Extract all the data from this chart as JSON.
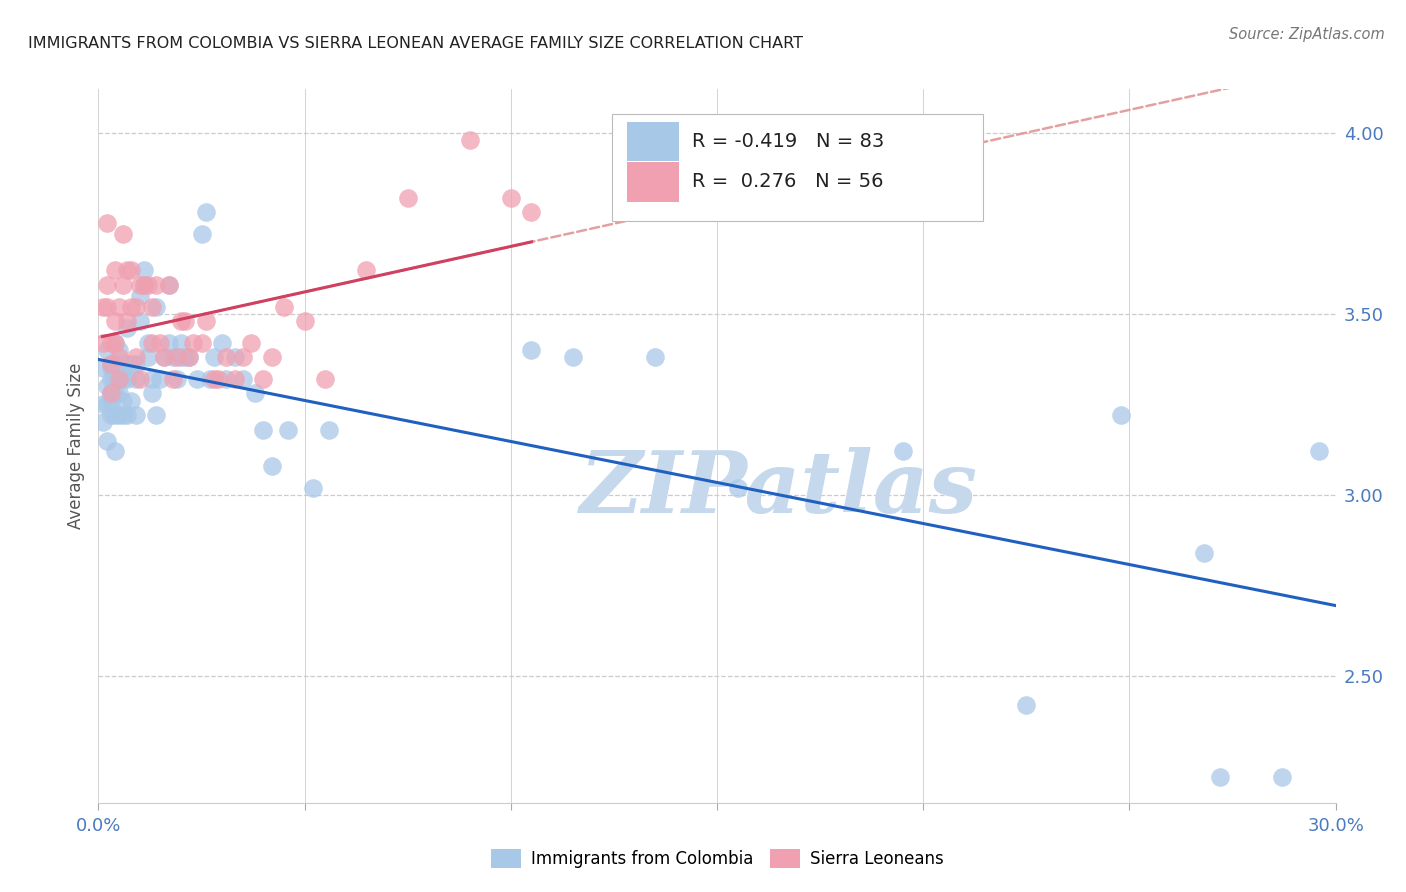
{
  "title": "IMMIGRANTS FROM COLOMBIA VS SIERRA LEONEAN AVERAGE FAMILY SIZE CORRELATION CHART",
  "source": "Source: ZipAtlas.com",
  "ylabel": "Average Family Size",
  "xlim": [
    0.0,
    0.3
  ],
  "ylim": [
    2.15,
    4.12
  ],
  "right_ytick_vals": [
    2.5,
    3.0,
    3.5,
    4.0
  ],
  "right_ytick_labels": [
    "2.50",
    "3.00",
    "3.50",
    "4.00"
  ],
  "xtick_positions": [
    0.0,
    0.05,
    0.1,
    0.15,
    0.2,
    0.25,
    0.3
  ],
  "xtick_labels_edge": [
    "0.0%",
    "",
    "",
    "",
    "",
    "",
    "30.0%"
  ],
  "colombia_R": -0.419,
  "colombia_N": 83,
  "sierraleone_R": 0.276,
  "sierraleone_N": 56,
  "colombia_color": "#a8c8e8",
  "sierraleone_color": "#f0a0b0",
  "colombia_line_color": "#2060c0",
  "sierraleone_line_color": "#d04060",
  "sierraleone_dashed_color": "#e09090",
  "watermark": "ZIPatlas",
  "watermark_color": "#c5d8ec",
  "colombia_x": [
    0.001,
    0.001,
    0.001,
    0.002,
    0.002,
    0.002,
    0.002,
    0.003,
    0.003,
    0.003,
    0.003,
    0.003,
    0.003,
    0.004,
    0.004,
    0.004,
    0.004,
    0.004,
    0.005,
    0.005,
    0.005,
    0.005,
    0.005,
    0.005,
    0.006,
    0.006,
    0.006,
    0.006,
    0.007,
    0.007,
    0.007,
    0.007,
    0.008,
    0.008,
    0.009,
    0.009,
    0.009,
    0.01,
    0.01,
    0.011,
    0.011,
    0.012,
    0.012,
    0.013,
    0.013,
    0.014,
    0.014,
    0.015,
    0.016,
    0.017,
    0.017,
    0.018,
    0.019,
    0.02,
    0.02,
    0.021,
    0.022,
    0.024,
    0.025,
    0.026,
    0.027,
    0.028,
    0.03,
    0.031,
    0.033,
    0.035,
    0.038,
    0.04,
    0.042,
    0.046,
    0.052,
    0.056,
    0.105,
    0.115,
    0.135,
    0.155,
    0.195,
    0.225,
    0.248,
    0.268,
    0.272,
    0.287,
    0.296
  ],
  "colombia_y": [
    3.35,
    3.25,
    3.2,
    3.4,
    3.3,
    3.25,
    3.15,
    3.35,
    3.28,
    3.32,
    3.22,
    3.26,
    3.36,
    3.42,
    3.32,
    3.28,
    3.22,
    3.12,
    3.4,
    3.32,
    3.28,
    3.36,
    3.22,
    3.32,
    3.36,
    3.32,
    3.22,
    3.26,
    3.46,
    3.36,
    3.32,
    3.22,
    3.26,
    3.36,
    3.32,
    3.22,
    3.36,
    3.55,
    3.48,
    3.62,
    3.58,
    3.42,
    3.38,
    3.32,
    3.28,
    3.52,
    3.22,
    3.32,
    3.38,
    3.58,
    3.42,
    3.38,
    3.32,
    3.38,
    3.42,
    3.38,
    3.38,
    3.32,
    3.72,
    3.78,
    3.32,
    3.38,
    3.42,
    3.32,
    3.38,
    3.32,
    3.28,
    3.18,
    3.08,
    3.18,
    3.02,
    3.18,
    3.4,
    3.38,
    3.38,
    3.02,
    3.12,
    2.42,
    3.22,
    2.84,
    2.22,
    2.22,
    3.12
  ],
  "sierraleone_x": [
    0.001,
    0.001,
    0.002,
    0.002,
    0.002,
    0.003,
    0.003,
    0.003,
    0.004,
    0.004,
    0.004,
    0.005,
    0.005,
    0.005,
    0.006,
    0.006,
    0.007,
    0.007,
    0.008,
    0.008,
    0.009,
    0.009,
    0.01,
    0.01,
    0.011,
    0.012,
    0.013,
    0.013,
    0.014,
    0.015,
    0.016,
    0.017,
    0.018,
    0.019,
    0.02,
    0.021,
    0.022,
    0.023,
    0.025,
    0.026,
    0.028,
    0.029,
    0.031,
    0.033,
    0.035,
    0.037,
    0.04,
    0.042,
    0.045,
    0.05,
    0.055,
    0.065,
    0.075,
    0.09,
    0.1,
    0.105
  ],
  "sierraleone_y": [
    3.52,
    3.42,
    3.75,
    3.58,
    3.52,
    3.42,
    3.36,
    3.28,
    3.62,
    3.48,
    3.42,
    3.52,
    3.38,
    3.32,
    3.72,
    3.58,
    3.62,
    3.48,
    3.52,
    3.62,
    3.38,
    3.52,
    3.58,
    3.32,
    3.58,
    3.58,
    3.52,
    3.42,
    3.58,
    3.42,
    3.38,
    3.58,
    3.32,
    3.38,
    3.48,
    3.48,
    3.38,
    3.42,
    3.42,
    3.48,
    3.32,
    3.32,
    3.38,
    3.32,
    3.38,
    3.42,
    3.32,
    3.38,
    3.52,
    3.48,
    3.32,
    3.62,
    3.82,
    3.98,
    3.82,
    3.78
  ]
}
